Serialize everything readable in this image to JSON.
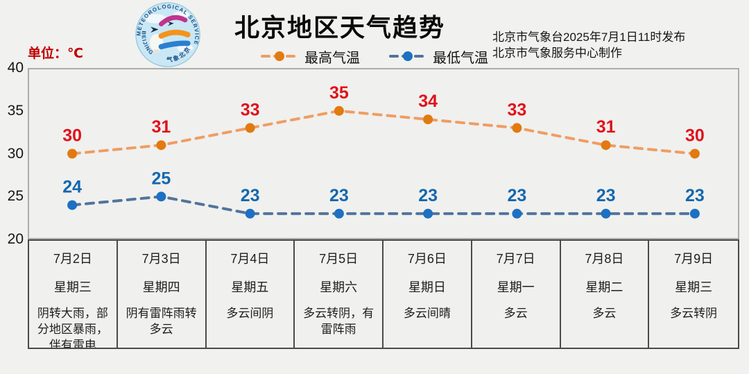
{
  "header": {
    "title": "北京地区天气趋势",
    "publisher_line1": "北京市气象台2025年7月1日11时发布",
    "publisher_line2": "北京市气象服务中心制作",
    "unit_label": "单位：℃",
    "logo": {
      "text_top": "METEOROLOGICAL SERVICE",
      "text_left": "BEIJING",
      "text_bottom": "气象北京"
    }
  },
  "legend": [
    {
      "label": "最高气温",
      "line_color": "#EF9D64",
      "marker_color": "#E17A10"
    },
    {
      "label": "最低气温",
      "line_color": "#51749C",
      "marker_color": "#1D70C2"
    }
  ],
  "chart_data": {
    "type": "line",
    "categories": [
      "7月2日",
      "7月3日",
      "7月4日",
      "7月5日",
      "7月6日",
      "7月7日",
      "7月8日",
      "7月9日"
    ],
    "series": [
      {
        "name": "最高气温",
        "values": [
          30,
          31,
          33,
          35,
          34,
          33,
          31,
          30
        ],
        "line_color": "#EF9D64",
        "marker_color": "#E17A10",
        "label_color": "#E0111A",
        "style": "dashed"
      },
      {
        "name": "最低气温",
        "values": [
          24,
          25,
          23,
          23,
          23,
          23,
          23,
          23
        ],
        "line_color": "#51749C",
        "marker_color": "#1D70C2",
        "label_color": "#1467AE",
        "style": "dashed"
      }
    ],
    "ylabel": "单位：℃",
    "ylim": [
      20,
      40
    ],
    "yticks": [
      40,
      35,
      30,
      25,
      20
    ],
    "grid": false,
    "legend_position": "top",
    "title": "北京地区天气趋势"
  },
  "table": {
    "days": [
      {
        "date": "7月2日",
        "weekday": "星期三",
        "weather": "阴转大雨，部分地区暴雨，伴有雷电"
      },
      {
        "date": "7月3日",
        "weekday": "星期四",
        "weather": "阴有雷阵雨转多云"
      },
      {
        "date": "7月4日",
        "weekday": "星期五",
        "weather": "多云间阴"
      },
      {
        "date": "7月5日",
        "weekday": "星期六",
        "weather": "多云转阴，有雷阵雨"
      },
      {
        "date": "7月6日",
        "weekday": "星期日",
        "weather": "多云间晴"
      },
      {
        "date": "7月7日",
        "weekday": "星期一",
        "weather": "多云"
      },
      {
        "date": "7月8日",
        "weekday": "星期二",
        "weather": "多云"
      },
      {
        "date": "7月9日",
        "weekday": "星期三",
        "weather": "多云转阴"
      }
    ]
  },
  "colors": {
    "page_bg": "#F1F1EF",
    "plot_border": "#ACACAC",
    "table_border": "#4A4A4A",
    "high_label": "#E0111A",
    "low_label": "#1467AE",
    "unit_red": "#C00000"
  }
}
